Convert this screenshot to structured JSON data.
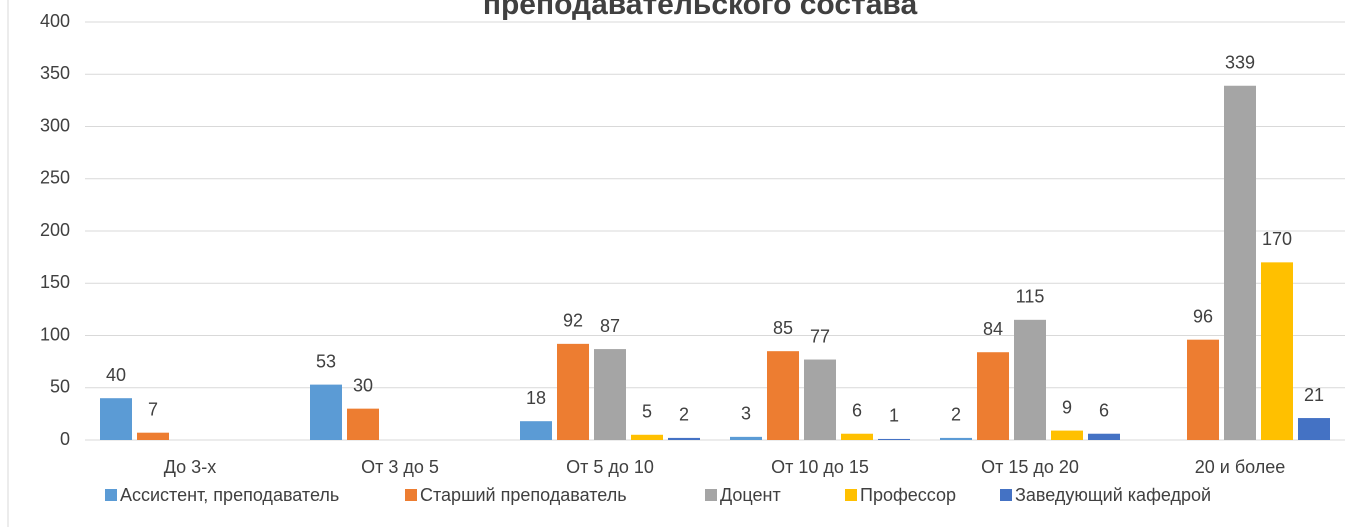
{
  "chart_data": {
    "type": "bar",
    "title": "преподавательского состава",
    "categories": [
      "До 3-х",
      "От 3 до 5",
      "От 5 до 10",
      "От 10 до 15",
      "От 15 до 20",
      "20 и более"
    ],
    "series": [
      {
        "name": "Ассистент, преподаватель",
        "color": "#5b9bd5",
        "values": [
          40,
          53,
          18,
          3,
          2,
          null
        ]
      },
      {
        "name": "Старший преподаватель",
        "color": "#ed7d31",
        "values": [
          7,
          30,
          92,
          85,
          84,
          96
        ]
      },
      {
        "name": "Доцент",
        "color": "#a5a5a5",
        "values": [
          null,
          null,
          87,
          77,
          115,
          339
        ]
      },
      {
        "name": "Профессор",
        "color": "#ffc000",
        "values": [
          null,
          null,
          5,
          6,
          9,
          170
        ]
      },
      {
        "name": "Заведующий кафедрой",
        "color": "#4472c4",
        "values": [
          null,
          null,
          2,
          1,
          6,
          21
        ]
      }
    ],
    "ylim": [
      0,
      400
    ],
    "yticks": [
      0,
      50,
      100,
      150,
      200,
      250,
      300,
      350,
      400
    ],
    "grid": true,
    "legend": "bottom",
    "data_labels": true
  }
}
